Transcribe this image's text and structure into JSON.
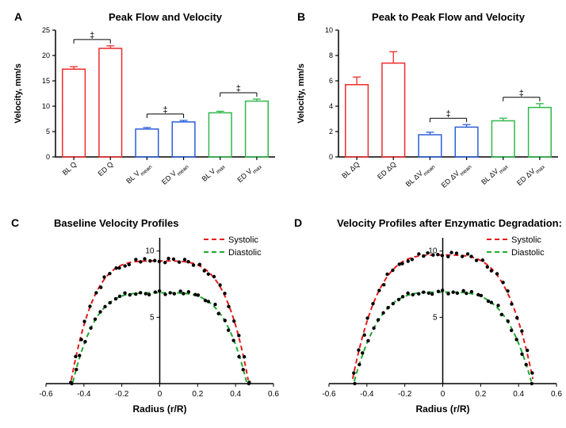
{
  "panelA": {
    "type": "bar",
    "letter": "A",
    "title": "Peak Flow and Velocity",
    "ylabel": "Velocity, mm/s",
    "ylim": [
      0,
      25
    ],
    "yticks": [
      0,
      5,
      10,
      15,
      20,
      25
    ],
    "bars": [
      {
        "label_pre": "BL ",
        "label_main": "Q",
        "label_sub": "",
        "value": 17.3,
        "err": 0.5,
        "color": "#ee2a2a"
      },
      {
        "label_pre": "ED ",
        "label_main": "Q",
        "label_sub": "",
        "value": 21.4,
        "err": 0.5,
        "color": "#ee2a2a"
      },
      {
        "label_pre": "BL ",
        "label_main": "V",
        "label_sub": "mean",
        "value": 5.5,
        "err": 0.3,
        "color": "#2a5ed8"
      },
      {
        "label_pre": "ED ",
        "label_main": "V",
        "label_sub": "mean",
        "value": 6.9,
        "err": 0.3,
        "color": "#2a5ed8"
      },
      {
        "label_pre": "BL ",
        "label_main": "V",
        "label_sub": "max",
        "value": 8.7,
        "err": 0.3,
        "color": "#2fb84a"
      },
      {
        "label_pre": "ED ",
        "label_main": "V",
        "label_sub": "max",
        "value": 11.0,
        "err": 0.4,
        "color": "#2fb84a"
      }
    ],
    "sig_marks": [
      {
        "from": 0,
        "to": 1,
        "symbol": "‡"
      },
      {
        "from": 2,
        "to": 3,
        "symbol": "‡"
      },
      {
        "from": 4,
        "to": 5,
        "symbol": "‡"
      }
    ],
    "title_fontsize": 13,
    "axis_fontsize": 11,
    "tick_fontsize": 9,
    "bar_stroke_width": 1.5,
    "axis_color": "#000000",
    "background": "#ffffff"
  },
  "panelB": {
    "type": "bar",
    "letter": "B",
    "title": "Peak to Peak Flow and Velocity",
    "ylabel": "Velocity, mm/s",
    "ylim": [
      0,
      10
    ],
    "yticks": [
      0,
      2,
      4,
      6,
      8,
      10
    ],
    "bars": [
      {
        "label_pre": "BL ",
        "label_main": "ΔQ",
        "label_sub": "",
        "value": 5.7,
        "err": 0.6,
        "color": "#ee2a2a"
      },
      {
        "label_pre": "ED ",
        "label_main": "ΔQ",
        "label_sub": "",
        "value": 7.4,
        "err": 0.9,
        "color": "#ee2a2a"
      },
      {
        "label_pre": "BL ",
        "label_main": "ΔV",
        "label_sub": "mean",
        "value": 1.75,
        "err": 0.2,
        "color": "#2a5ed8"
      },
      {
        "label_pre": "ED ",
        "label_main": "ΔV",
        "label_sub": "mean",
        "value": 2.35,
        "err": 0.2,
        "color": "#2a5ed8"
      },
      {
        "label_pre": "BL ",
        "label_main": "ΔV",
        "label_sub": "max",
        "value": 2.85,
        "err": 0.2,
        "color": "#2fb84a"
      },
      {
        "label_pre": "ED ",
        "label_main": "ΔV",
        "label_sub": "max",
        "value": 3.9,
        "err": 0.3,
        "color": "#2fb84a"
      }
    ],
    "sig_marks": [
      {
        "from": 2,
        "to": 3,
        "symbol": "‡"
      },
      {
        "from": 4,
        "to": 5,
        "symbol": "‡"
      }
    ],
    "title_fontsize": 13,
    "axis_fontsize": 11,
    "tick_fontsize": 9,
    "bar_stroke_width": 1.5,
    "axis_color": "#000000",
    "background": "#ffffff"
  },
  "panelC": {
    "type": "scatter",
    "letter": "C",
    "title": "Baseline Velocity Profiles",
    "xlabel": "Radius (r/R)",
    "xlim": [
      -0.6,
      0.6
    ],
    "xticks": [
      -0.6,
      -0.4,
      -0.2,
      0,
      0.2,
      0.4,
      0.6
    ],
    "ylim": [
      0,
      11
    ],
    "yticks": [
      5,
      10
    ],
    "legend": [
      {
        "label": "Systolic",
        "color": "#e31b1b",
        "dash": "6,4"
      },
      {
        "label": "Diastolic",
        "color": "#1fa82f",
        "dash": "6,4"
      }
    ],
    "curve_sys": {
      "cap": 9.25,
      "R": 0.47,
      "pow": 4.0,
      "color": "#e31b1b"
    },
    "curve_dia": {
      "cap": 6.85,
      "R": 0.46,
      "pow": 4.0,
      "color": "#1fa82f"
    },
    "point_color": "#000000",
    "point_radius": 2.2,
    "title_fontsize": 13,
    "axis_fontsize": 12,
    "tick_fontsize": 10,
    "axis_color": "#000000",
    "background": "#ffffff"
  },
  "panelD": {
    "type": "scatter",
    "letter": "D",
    "title": "Velocity Profiles after Enzymatic Degradation:",
    "xlabel": "Radius (r/R)",
    "xlim": [
      -0.6,
      0.6
    ],
    "xticks": [
      -0.6,
      -0.4,
      -0.2,
      0,
      0.2,
      0.4,
      0.6
    ],
    "ylim": [
      0,
      11
    ],
    "yticks": [
      5,
      10
    ],
    "legend": [
      {
        "label": "Systolic",
        "color": "#e31b1b",
        "dash": "6,4"
      },
      {
        "label": "Diastolic",
        "color": "#1fa82f",
        "dash": "6,4"
      }
    ],
    "curve_sys": {
      "cap": 9.7,
      "R": 0.48,
      "pow": 3.6,
      "color": "#e31b1b"
    },
    "curve_dia": {
      "cap": 6.9,
      "R": 0.47,
      "pow": 3.6,
      "color": "#1fa82f"
    },
    "point_color": "#000000",
    "point_radius": 2.2,
    "title_fontsize": 13,
    "axis_fontsize": 12,
    "tick_fontsize": 10,
    "axis_color": "#000000",
    "background": "#ffffff"
  }
}
